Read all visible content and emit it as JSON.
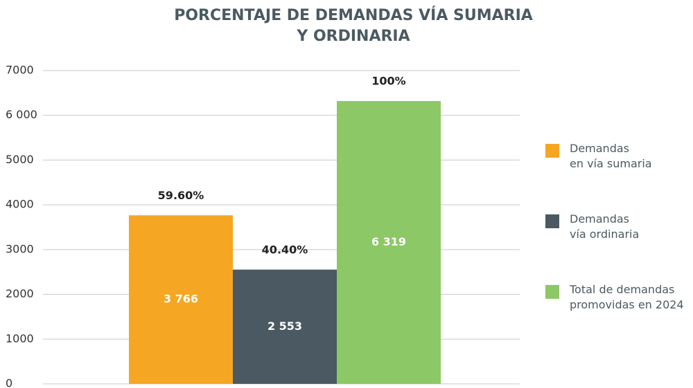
{
  "chart_data": {
    "type": "bar",
    "title": "PORCENTAJE DE DEMANDAS VÍA SUMARIA\nY ORDINARIA",
    "categories": [
      null
    ],
    "series": [
      {
        "name": "Demandas\nen vía sumaria",
        "color": "#f5a623",
        "values": [
          3766
        ],
        "value_labels": [
          "3 766"
        ],
        "percent_labels": [
          "59.60%"
        ]
      },
      {
        "name": "Demandas\nvía ordinaria",
        "color": "#4b5a62",
        "values": [
          2553
        ],
        "value_labels": [
          "2 553"
        ],
        "percent_labels": [
          "40.40%"
        ]
      },
      {
        "name": "Total de demandas\npromovidas en 2024",
        "color": "#8cc866",
        "values": [
          6319
        ],
        "value_labels": [
          "6 319"
        ],
        "percent_labels": [
          "100%"
        ]
      }
    ],
    "ylim": [
      0,
      7000
    ],
    "yticks": [
      0,
      1000,
      2000,
      3000,
      4000,
      5000,
      {
        "value": 6000,
        "label": "6 000"
      },
      7000
    ],
    "grid": true,
    "legend": "right"
  }
}
